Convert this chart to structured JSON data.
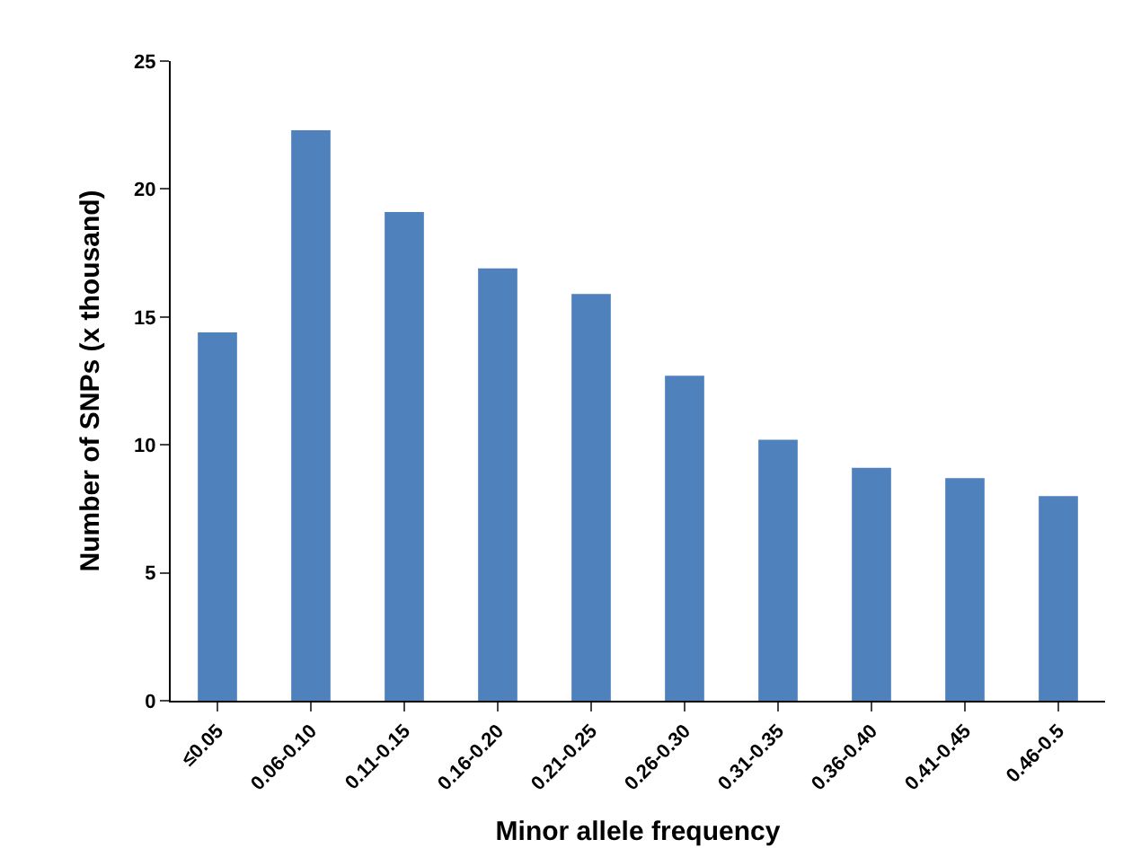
{
  "chart_data": {
    "type": "bar",
    "xlabel": "Minor allele frequency",
    "ylabel": "Number of SNPs (x thousand)",
    "categories": [
      "≤0.05",
      "0.06-0.10",
      "0.11-0.15",
      "0.16-0.20",
      "0.21-0.25",
      "0.26-0.30",
      "0.31-0.35",
      "0.36-0.40",
      "0.41-0.45",
      "0.46-0.5"
    ],
    "values": [
      14.4,
      22.3,
      19.1,
      16.9,
      15.9,
      12.7,
      10.2,
      9.1,
      8.7,
      8.0
    ],
    "color": "#4f81bd",
    "ylim": [
      0,
      25
    ],
    "yticks": [
      0,
      5,
      10,
      15,
      20,
      25
    ],
    "legend": false
  }
}
